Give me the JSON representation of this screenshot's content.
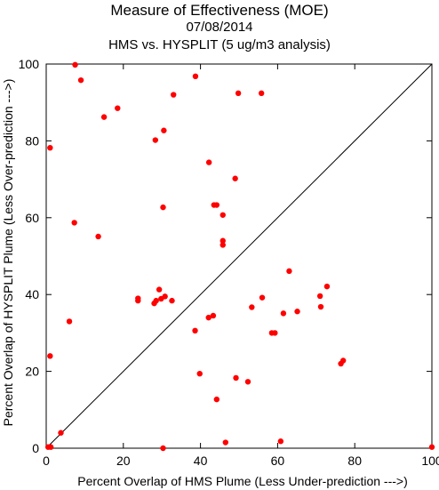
{
  "chart_data": {
    "type": "scatter",
    "title": "Measure of Effectiveness (MOE)",
    "subtitle_date": "07/08/2014",
    "subtitle_analysis": "HMS vs. HYSPLIT  (5 ug/m3 analysis)",
    "xlabel": "Percent Overlap of HMS Plume (Less Under-prediction --->)",
    "ylabel": "Percent Overlap of HYSPLIT Plume (Less Over-prediction --->)",
    "xlim": [
      0,
      100
    ],
    "ylim": [
      0,
      100
    ],
    "xticks": [
      0,
      20,
      40,
      60,
      80,
      100
    ],
    "yticks": [
      0,
      20,
      40,
      60,
      80,
      100
    ],
    "x_tick_labels": [
      "0",
      "20",
      "40",
      "60",
      "80",
      "100"
    ],
    "y_tick_labels": [
      "0",
      "20",
      "40",
      "60",
      "80",
      "100"
    ],
    "marker_color": "#ff0000",
    "reference_line": "diagonal y = x",
    "points": [
      {
        "x": 7.5,
        "y": 99.8
      },
      {
        "x": 9.0,
        "y": 95.8
      },
      {
        "x": 18.5,
        "y": 88.5
      },
      {
        "x": 15.0,
        "y": 86.2
      },
      {
        "x": 38.7,
        "y": 96.8
      },
      {
        "x": 33.0,
        "y": 92.0
      },
      {
        "x": 49.8,
        "y": 92.4
      },
      {
        "x": 55.8,
        "y": 92.4
      },
      {
        "x": 30.5,
        "y": 82.7
      },
      {
        "x": 28.3,
        "y": 80.2
      },
      {
        "x": 1.0,
        "y": 78.2
      },
      {
        "x": 42.2,
        "y": 74.4
      },
      {
        "x": 49.0,
        "y": 70.2
      },
      {
        "x": 30.3,
        "y": 62.7
      },
      {
        "x": 43.5,
        "y": 63.3
      },
      {
        "x": 44.2,
        "y": 63.3
      },
      {
        "x": 45.8,
        "y": 60.7
      },
      {
        "x": 7.3,
        "y": 58.7
      },
      {
        "x": 13.5,
        "y": 55.1
      },
      {
        "x": 45.8,
        "y": 54.0
      },
      {
        "x": 45.8,
        "y": 52.9
      },
      {
        "x": 63.0,
        "y": 46.1
      },
      {
        "x": 72.8,
        "y": 42.1
      },
      {
        "x": 29.3,
        "y": 41.3
      },
      {
        "x": 71.0,
        "y": 39.6
      },
      {
        "x": 30.8,
        "y": 39.5
      },
      {
        "x": 56.0,
        "y": 39.2
      },
      {
        "x": 23.8,
        "y": 39.0
      },
      {
        "x": 23.8,
        "y": 38.4
      },
      {
        "x": 29.8,
        "y": 38.9
      },
      {
        "x": 28.5,
        "y": 38.4
      },
      {
        "x": 28.0,
        "y": 37.7
      },
      {
        "x": 32.6,
        "y": 38.4
      },
      {
        "x": 53.3,
        "y": 36.7
      },
      {
        "x": 71.2,
        "y": 36.8
      },
      {
        "x": 65.1,
        "y": 35.6
      },
      {
        "x": 61.5,
        "y": 35.1
      },
      {
        "x": 43.3,
        "y": 34.5
      },
      {
        "x": 42.1,
        "y": 34.0
      },
      {
        "x": 6.0,
        "y": 33.0
      },
      {
        "x": 38.6,
        "y": 30.6
      },
      {
        "x": 58.5,
        "y": 30.0
      },
      {
        "x": 59.3,
        "y": 30.0
      },
      {
        "x": 1.0,
        "y": 24.0
      },
      {
        "x": 77.0,
        "y": 22.8
      },
      {
        "x": 76.4,
        "y": 22.0
      },
      {
        "x": 39.8,
        "y": 19.4
      },
      {
        "x": 49.2,
        "y": 18.3
      },
      {
        "x": 52.3,
        "y": 17.3
      },
      {
        "x": 44.2,
        "y": 12.7
      },
      {
        "x": 3.8,
        "y": 4.0
      },
      {
        "x": 46.5,
        "y": 1.5
      },
      {
        "x": 60.8,
        "y": 1.8
      },
      {
        "x": 0.5,
        "y": 0.3
      },
      {
        "x": 1.2,
        "y": 0.3
      },
      {
        "x": 30.3,
        "y": 0.0
      },
      {
        "x": 100.0,
        "y": 0.3
      }
    ]
  }
}
